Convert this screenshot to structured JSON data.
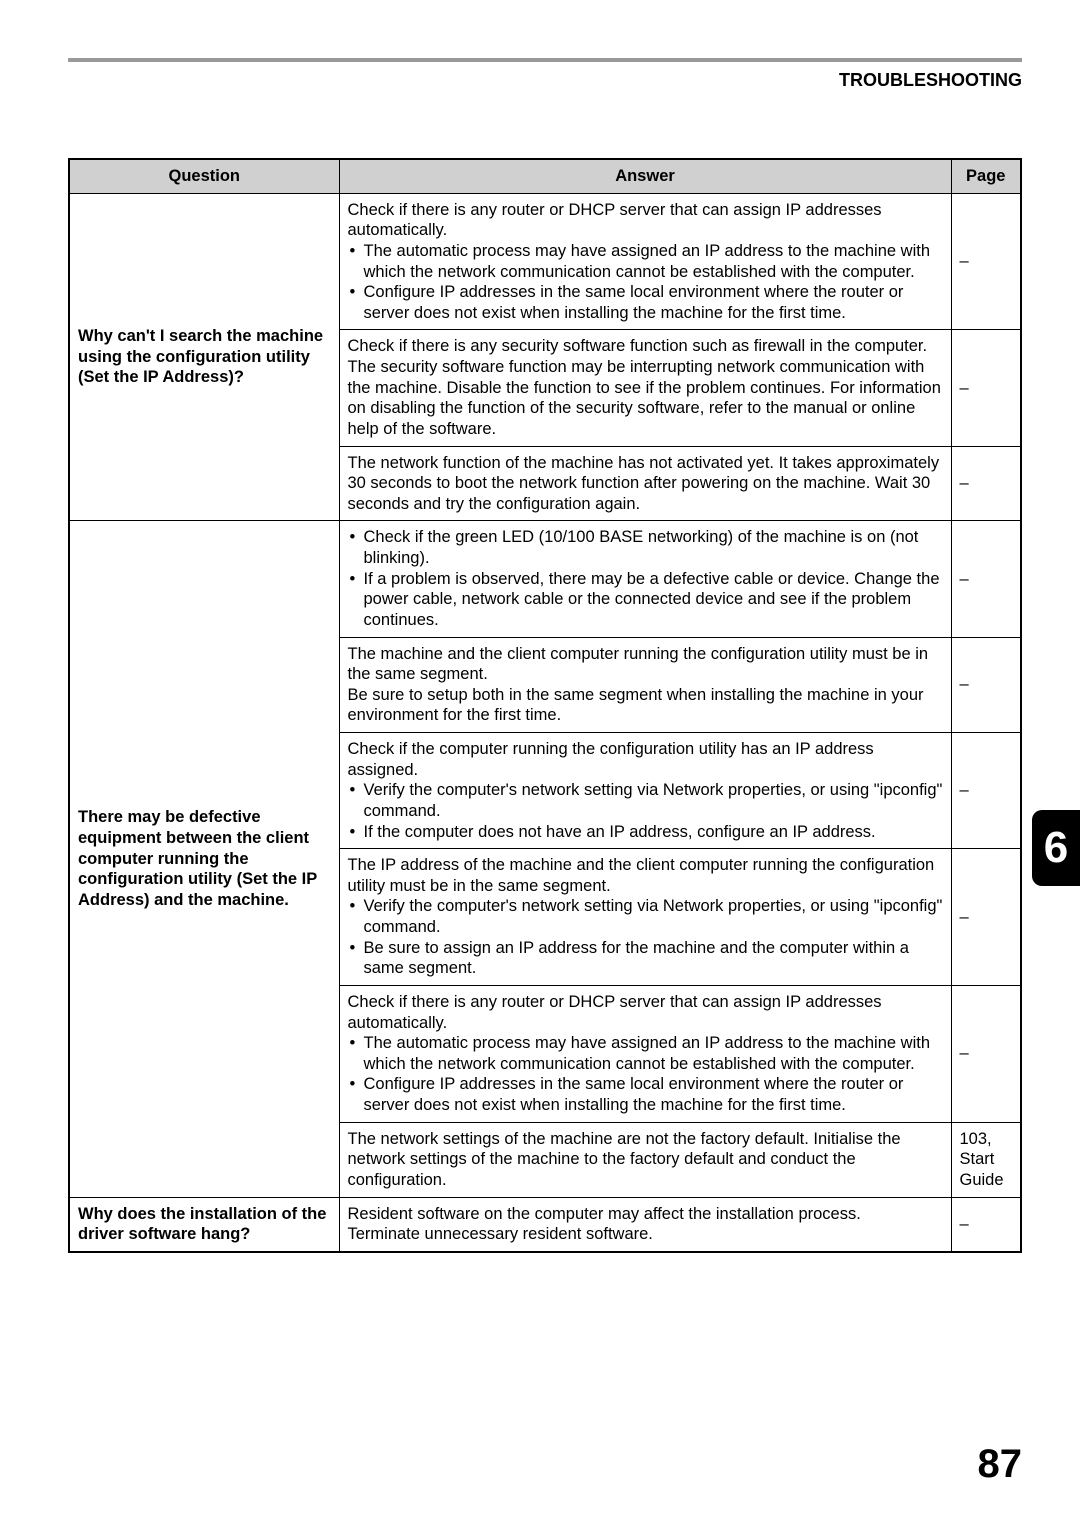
{
  "header": {
    "section_title": "TROUBLESHOOTING"
  },
  "table": {
    "headers": {
      "question": "Question",
      "answer": "Answer",
      "page": "Page"
    },
    "rows": [
      {
        "question": "Why can't I search the machine using the configuration utility (Set the IP Address)?",
        "answers": [
          {
            "intro": "Check if there is any router or DHCP server that can assign IP addresses automatically.",
            "bullets": [
              "The automatic process may have assigned an IP address to the machine with which the network communication cannot be established with the computer.",
              "Configure IP addresses in the same local environment where the router or server does not exist when installing the machine for the first time."
            ],
            "page": "–"
          },
          {
            "plain": "Check if there is any security software function such as firewall in the computer.\nThe security software function may be interrupting network communication with the machine. Disable the function to see if the problem continues. For information on disabling the function of the security software, refer to the manual or online help of the software.",
            "page": "–"
          },
          {
            "plain": "The network function of the machine has not activated yet. It takes approximately 30 seconds to boot the network function after powering on the machine. Wait 30 seconds and try the configuration again.",
            "page": "–"
          }
        ]
      },
      {
        "question": "There may be defective equipment between the client computer running the configuration utility (Set the IP Address) and the machine.",
        "answers": [
          {
            "bullets_only": [
              "Check if the green LED (10/100 BASE networking) of the machine is on (not blinking).",
              "If a problem is observed, there may be a defective cable or device. Change the power cable, network cable or the connected device and see if the problem continues."
            ],
            "page": "–"
          },
          {
            "plain": "The machine and the client computer running the configuration utility must be in the same segment.\nBe sure to setup both in the same segment when installing the machine in your environment for the first time.",
            "page": "–"
          },
          {
            "intro": "Check if the computer running the configuration utility has an IP address assigned.",
            "bullets": [
              "Verify the computer's network setting via Network properties, or using \"ipconfig\" command.",
              "If the computer does not have an IP address, configure an IP address."
            ],
            "page": "–"
          },
          {
            "intro": "The IP address of the machine and the client computer running the configuration utility must be in the same segment.",
            "bullets": [
              "Verify the computer's network setting via Network properties, or using \"ipconfig\" command.",
              "Be sure to assign an IP address for the machine and the computer within a same segment."
            ],
            "page": "–"
          },
          {
            "intro": "Check if there is any router or DHCP server that can assign IP addresses automatically.",
            "bullets": [
              "The automatic process may have assigned an IP address to the machine with which the network communication cannot be established with the computer.",
              "Configure IP addresses in the same local environment where the router or server does not exist when installing the machine for the first time."
            ],
            "page": "–"
          },
          {
            "plain": "The network settings of the machine are not the factory default. Initialise the network settings of the machine to the factory default and conduct the configuration.",
            "page": "103, Start Guide"
          }
        ]
      },
      {
        "question": "Why does the installation of the driver software hang?",
        "answers": [
          {
            "plain": "Resident software on the computer may affect the installation process.\nTerminate unnecessary resident software.",
            "page": "–"
          }
        ]
      }
    ]
  },
  "side_tab": "6",
  "page_number": "87"
}
